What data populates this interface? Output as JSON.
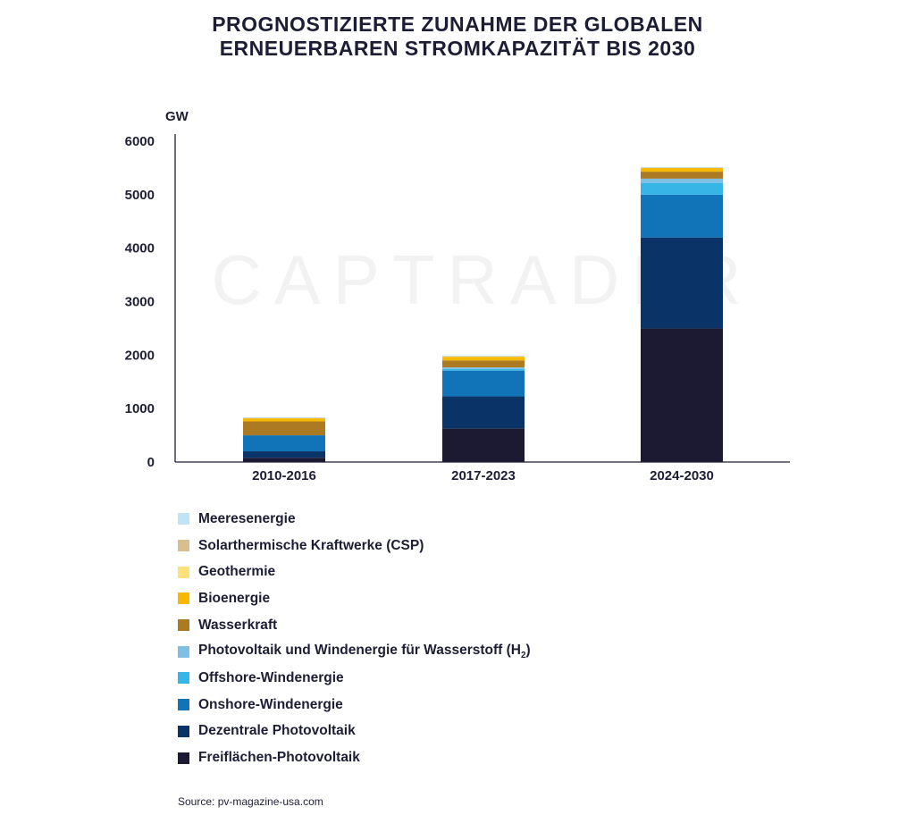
{
  "chart_data": {
    "type": "bar",
    "stacked": true,
    "title_lines": [
      "PROGNOSTIZIERTE ZUNAHME DER GLOBALEN",
      "ERNEUERBAREN STROMKAPAZITÄT BIS 2030"
    ],
    "ylabel": "GW",
    "ylim": [
      0,
      6000
    ],
    "yticks": [
      "0",
      "1000",
      "2000",
      "3000",
      "4000",
      "5000",
      "6000"
    ],
    "categories": [
      "2010-2016",
      "2017-2023",
      "2024-2030"
    ],
    "watermark": "CAPTRADER",
    "source": "Source: pv-magazine-usa.com",
    "series": [
      {
        "name": "Freiflächen-Photovoltaik",
        "color": "#1c1a33",
        "values": [
          80,
          630,
          2500
        ]
      },
      {
        "name": "Dezentrale Photovoltaik",
        "color": "#0a3468",
        "values": [
          120,
          600,
          1700
        ]
      },
      {
        "name": "Onshore-Windenergie",
        "color": "#1174b8",
        "values": [
          300,
          480,
          800
        ]
      },
      {
        "name": "Offshore-Windenergie",
        "color": "#35b6e6",
        "values": [
          0,
          30,
          220
        ]
      },
      {
        "name": "Photovoltaik und Windenergie für Wasserstoff (H",
        "name_sub": "2",
        "name_suffix": ")",
        "color": "#7fbfe4",
        "values": [
          0,
          30,
          80
        ]
      },
      {
        "name": "Wasserkraft",
        "color": "#ab7a22",
        "values": [
          260,
          130,
          130
        ]
      },
      {
        "name": "Bioenergie",
        "color": "#f7b800",
        "values": [
          60,
          70,
          70
        ]
      },
      {
        "name": "Geothermie",
        "color": "#ffe07a",
        "values": [
          10,
          10,
          10
        ]
      },
      {
        "name": "Solarthermische Kraftwerke (CSP)",
        "color": "#d9be90",
        "values": [
          5,
          5,
          5
        ]
      },
      {
        "name": "Meeresenergie",
        "color": "#c2e2f5",
        "values": [
          2,
          2,
          2
        ]
      }
    ],
    "legend_order": [
      9,
      8,
      7,
      6,
      5,
      4,
      3,
      2,
      1,
      0
    ],
    "grid": false,
    "legend_position": "bottom"
  }
}
